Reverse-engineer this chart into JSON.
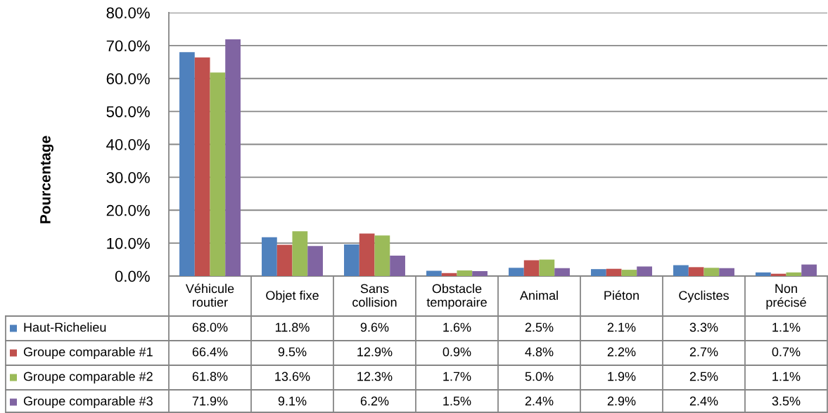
{
  "chart_data": {
    "type": "bar",
    "ylabel": "Pourcentage",
    "categories": [
      "Véhicule\nroutier",
      "Objet fixe",
      "Sans\ncollision",
      "Obstacle\ntemporaire",
      "Animal",
      "Piéton",
      "Cyclistes",
      "Non\nprécisé"
    ],
    "series": [
      {
        "name": "Haut-Richelieu",
        "color": "#4f81bd",
        "values": [
          68.0,
          11.8,
          9.6,
          1.6,
          2.5,
          2.1,
          3.3,
          1.1
        ],
        "value_labels": [
          "68.0%",
          "11.8%",
          "9.6%",
          "1.6%",
          "2.5%",
          "2.1%",
          "3.3%",
          "1.1%"
        ]
      },
      {
        "name": "Groupe comparable #1",
        "color": "#c0504d",
        "values": [
          66.4,
          9.5,
          12.9,
          0.9,
          4.8,
          2.2,
          2.7,
          0.7
        ],
        "value_labels": [
          "66.4%",
          "9.5%",
          "12.9%",
          "0.9%",
          "4.8%",
          "2.2%",
          "2.7%",
          "0.7%"
        ]
      },
      {
        "name": "Groupe comparable #2",
        "color": "#9bbb59",
        "values": [
          61.8,
          13.6,
          12.3,
          1.7,
          5.0,
          1.9,
          2.5,
          1.1
        ],
        "value_labels": [
          "61.8%",
          "13.6%",
          "12.3%",
          "1.7%",
          "5.0%",
          "1.9%",
          "2.5%",
          "1.1%"
        ]
      },
      {
        "name": "Groupe comparable #3",
        "color": "#8064a2",
        "values": [
          71.9,
          9.1,
          6.2,
          1.5,
          2.4,
          2.9,
          2.4,
          3.5
        ],
        "value_labels": [
          "71.9%",
          "9.1%",
          "6.2%",
          "1.5%",
          "2.4%",
          "2.9%",
          "2.4%",
          "3.5%"
        ]
      }
    ],
    "ylim": [
      0,
      80
    ],
    "yticks": [
      {
        "value": 0,
        "label": "0.0%"
      },
      {
        "value": 10,
        "label": "10.0%"
      },
      {
        "value": 20,
        "label": "20.0%"
      },
      {
        "value": 30,
        "label": "30.0%"
      },
      {
        "value": 40,
        "label": "40.0%"
      },
      {
        "value": 50,
        "label": "50.0%"
      },
      {
        "value": 60,
        "label": "60.0%"
      },
      {
        "value": 70,
        "label": "70.0%"
      },
      {
        "value": 80,
        "label": "80.0%"
      }
    ],
    "grid": "y",
    "legend": "bottom"
  }
}
